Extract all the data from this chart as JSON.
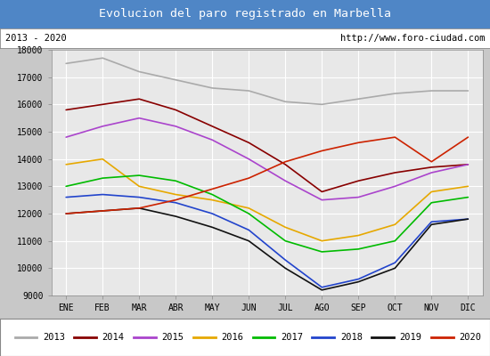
{
  "title": "Evolucion del paro registrado en Marbella",
  "subtitle_left": "2013 - 2020",
  "subtitle_right": "http://www.foro-ciudad.com",
  "title_bg_color": "#4f86c6",
  "title_text_color": "white",
  "months": [
    "ENE",
    "FEB",
    "MAR",
    "ABR",
    "MAY",
    "JUN",
    "JUL",
    "AGO",
    "SEP",
    "OCT",
    "NOV",
    "DIC"
  ],
  "ylim": [
    9000,
    18000
  ],
  "yticks": [
    9000,
    10000,
    11000,
    12000,
    13000,
    14000,
    15000,
    16000,
    17000,
    18000
  ],
  "series": {
    "2013": {
      "color": "#aaaaaa",
      "data": [
        17500,
        17700,
        17200,
        16900,
        16600,
        16500,
        16100,
        16000,
        16200,
        16400,
        16500,
        16500
      ]
    },
    "2014": {
      "color": "#880000",
      "data": [
        15800,
        16000,
        16200,
        15800,
        15200,
        14600,
        13800,
        12800,
        13200,
        13500,
        13700,
        13800
      ]
    },
    "2015": {
      "color": "#aa44cc",
      "data": [
        14800,
        15200,
        15500,
        15200,
        14700,
        14000,
        13200,
        12500,
        12600,
        13000,
        13500,
        13800
      ]
    },
    "2016": {
      "color": "#e6a800",
      "data": [
        13800,
        14000,
        13000,
        12700,
        12500,
        12200,
        11500,
        11000,
        11200,
        11600,
        12800,
        13000
      ]
    },
    "2017": {
      "color": "#00bb00",
      "data": [
        13000,
        13300,
        13400,
        13200,
        12700,
        12000,
        11000,
        10600,
        10700,
        11000,
        12400,
        12600
      ]
    },
    "2018": {
      "color": "#2244cc",
      "data": [
        12600,
        12700,
        12600,
        12400,
        12000,
        11400,
        10300,
        9300,
        9600,
        10200,
        11700,
        11800
      ]
    },
    "2019": {
      "color": "#111111",
      "data": [
        12000,
        12100,
        12200,
        11900,
        11500,
        11000,
        10000,
        9200,
        9500,
        10000,
        11600,
        11800
      ]
    },
    "2020": {
      "color": "#cc2200",
      "data": [
        12000,
        12100,
        12200,
        12500,
        12900,
        13300,
        13900,
        14300,
        14600,
        14800,
        13900,
        14800
      ]
    }
  }
}
